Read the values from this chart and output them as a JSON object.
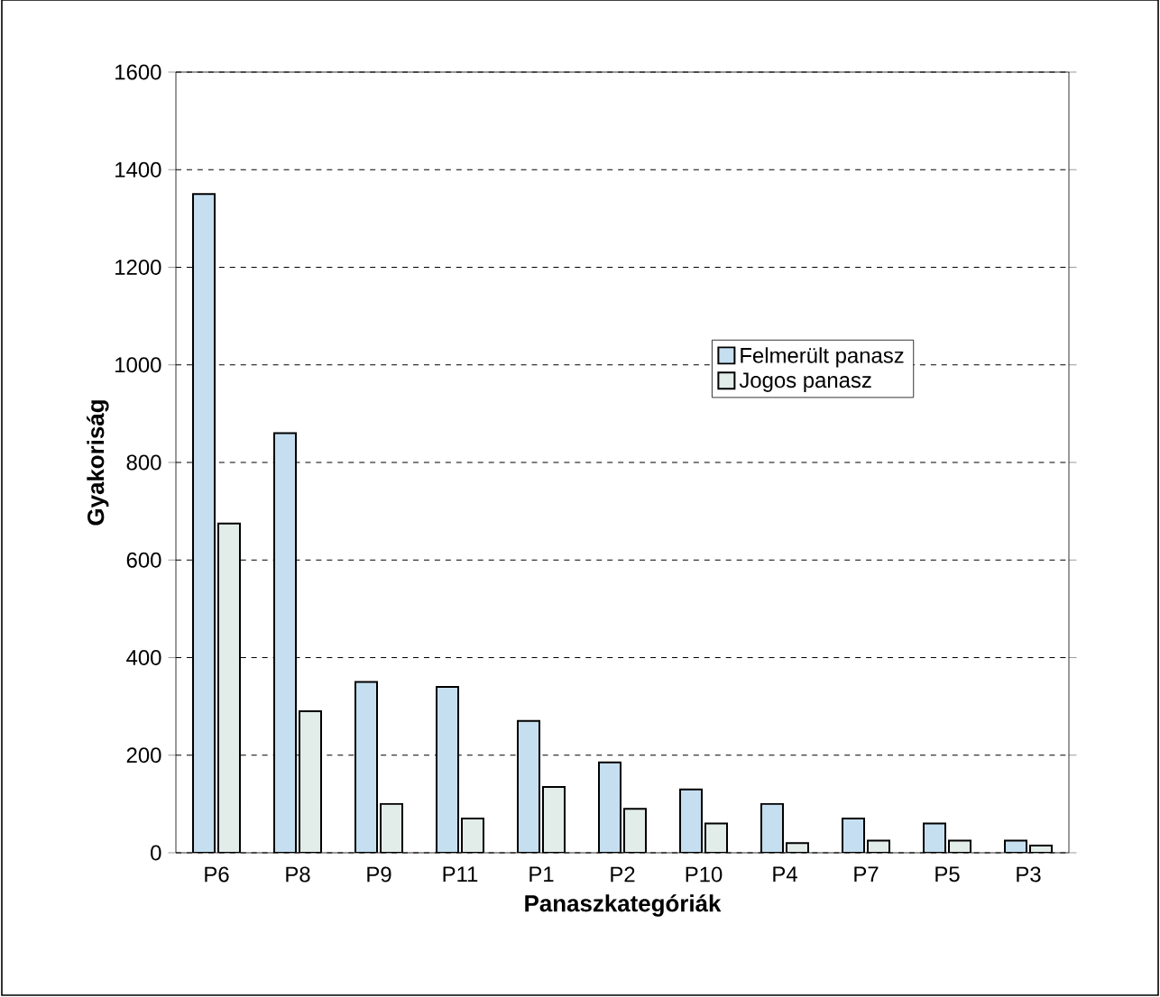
{
  "chart_data": {
    "type": "bar",
    "xlabel": "Panaszkategóriák",
    "ylabel": "Gyakoriság",
    "categories": [
      "P6",
      "P8",
      "P9",
      "P11",
      "P1",
      "P2",
      "P10",
      "P4",
      "P7",
      "P5",
      "P3"
    ],
    "series": [
      {
        "name": "Felmerült panasz",
        "color": "#c5dff0",
        "values": [
          1350,
          860,
          350,
          340,
          270,
          185,
          130,
          100,
          70,
          60,
          25
        ]
      },
      {
        "name": "Jogos panasz",
        "color": "#e2ece8",
        "values": [
          675,
          290,
          100,
          70,
          135,
          90,
          60,
          20,
          25,
          25,
          15
        ]
      }
    ],
    "ylim": [
      0,
      1600
    ],
    "yticks": [
      0,
      200,
      400,
      600,
      800,
      1000,
      1200,
      1400,
      1600
    ],
    "grid": "y",
    "legend": "right"
  }
}
